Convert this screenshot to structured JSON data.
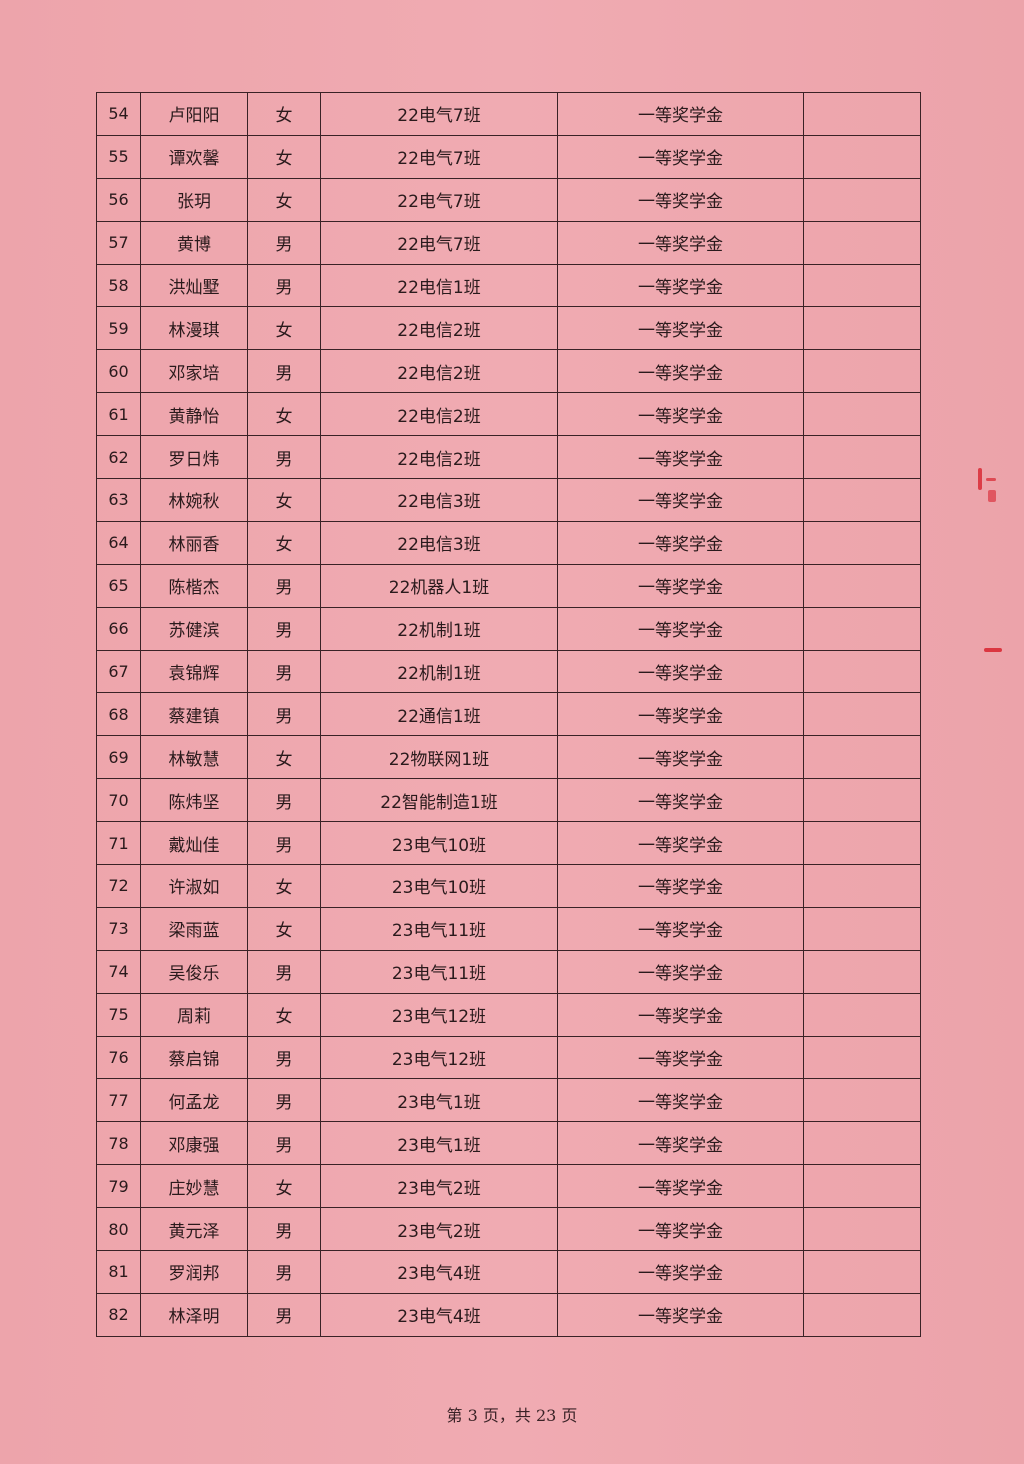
{
  "table": {
    "rows": [
      [
        "54",
        "卢阳阳",
        "女",
        "22电气7班",
        "一等奖学金",
        ""
      ],
      [
        "55",
        "谭欢馨",
        "女",
        "22电气7班",
        "一等奖学金",
        ""
      ],
      [
        "56",
        "张玥",
        "女",
        "22电气7班",
        "一等奖学金",
        ""
      ],
      [
        "57",
        "黄博",
        "男",
        "22电气7班",
        "一等奖学金",
        ""
      ],
      [
        "58",
        "洪灿墅",
        "男",
        "22电信1班",
        "一等奖学金",
        ""
      ],
      [
        "59",
        "林漫琪",
        "女",
        "22电信2班",
        "一等奖学金",
        ""
      ],
      [
        "60",
        "邓家培",
        "男",
        "22电信2班",
        "一等奖学金",
        ""
      ],
      [
        "61",
        "黄静怡",
        "女",
        "22电信2班",
        "一等奖学金",
        ""
      ],
      [
        "62",
        "罗日炜",
        "男",
        "22电信2班",
        "一等奖学金",
        ""
      ],
      [
        "63",
        "林婉秋",
        "女",
        "22电信3班",
        "一等奖学金",
        ""
      ],
      [
        "64",
        "林丽香",
        "女",
        "22电信3班",
        "一等奖学金",
        ""
      ],
      [
        "65",
        "陈楷杰",
        "男",
        "22机器人1班",
        "一等奖学金",
        ""
      ],
      [
        "66",
        "苏健滨",
        "男",
        "22机制1班",
        "一等奖学金",
        ""
      ],
      [
        "67",
        "袁锦辉",
        "男",
        "22机制1班",
        "一等奖学金",
        ""
      ],
      [
        "68",
        "蔡建镇",
        "男",
        "22通信1班",
        "一等奖学金",
        ""
      ],
      [
        "69",
        "林敏慧",
        "女",
        "22物联网1班",
        "一等奖学金",
        ""
      ],
      [
        "70",
        "陈炜坚",
        "男",
        "22智能制造1班",
        "一等奖学金",
        ""
      ],
      [
        "71",
        "戴灿佳",
        "男",
        "23电气10班",
        "一等奖学金",
        ""
      ],
      [
        "72",
        "许淑如",
        "女",
        "23电气10班",
        "一等奖学金",
        ""
      ],
      [
        "73",
        "梁雨蓝",
        "女",
        "23电气11班",
        "一等奖学金",
        ""
      ],
      [
        "74",
        "吴俊乐",
        "男",
        "23电气11班",
        "一等奖学金",
        ""
      ],
      [
        "75",
        "周莉",
        "女",
        "23电气12班",
        "一等奖学金",
        ""
      ],
      [
        "76",
        "蔡启锦",
        "男",
        "23电气12班",
        "一等奖学金",
        ""
      ],
      [
        "77",
        "何孟龙",
        "男",
        "23电气1班",
        "一等奖学金",
        ""
      ],
      [
        "78",
        "邓康强",
        "男",
        "23电气1班",
        "一等奖学金",
        ""
      ],
      [
        "79",
        "庄妙慧",
        "女",
        "23电气2班",
        "一等奖学金",
        ""
      ],
      [
        "80",
        "黄元泽",
        "男",
        "23电气2班",
        "一等奖学金",
        ""
      ],
      [
        "81",
        "罗润邦",
        "男",
        "23电气4班",
        "一等奖学金",
        ""
      ],
      [
        "82",
        "林泽明",
        "男",
        "23电气4班",
        "一等奖学金",
        ""
      ]
    ]
  },
  "footer": {
    "page_label": "第 3 页，共 23 页"
  },
  "colors": {
    "paper": "#eea7ae",
    "ink": "#2a1a1c",
    "stamp": "#d8232e"
  }
}
